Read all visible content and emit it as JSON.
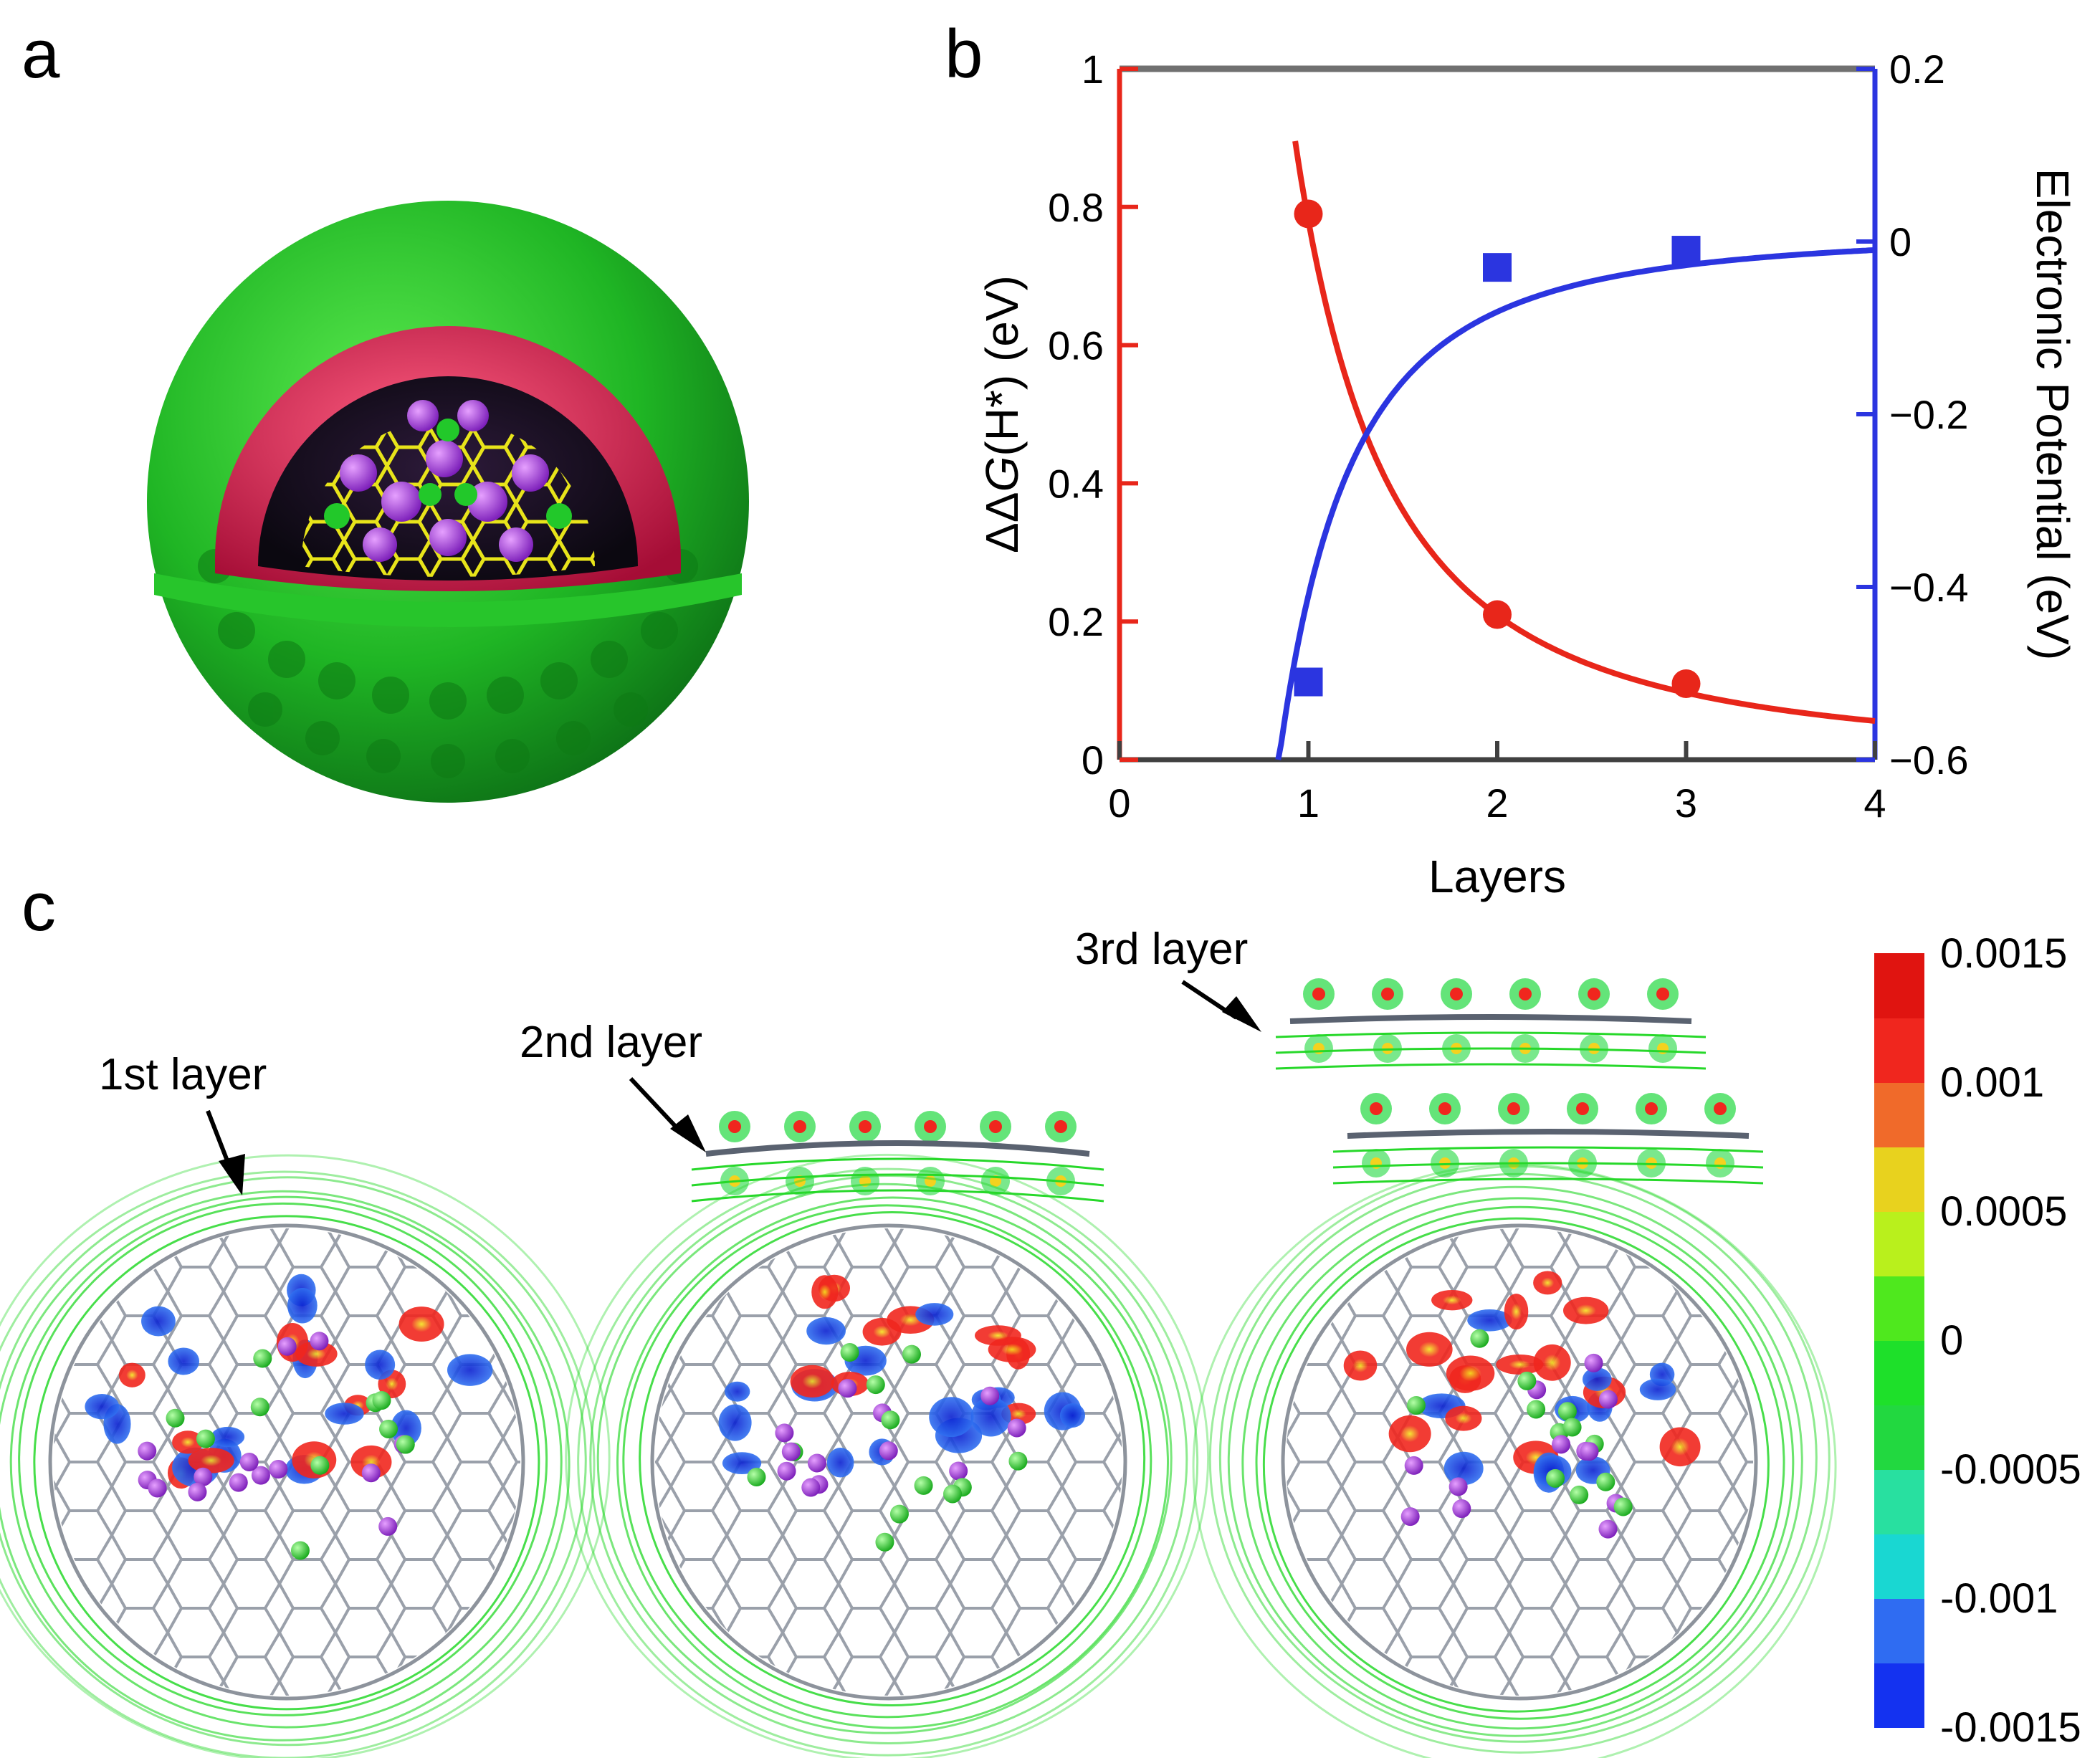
{
  "panels": {
    "a": "a",
    "b": "b",
    "c": "c"
  },
  "chart_data": {
    "type": "scatter",
    "xlabel": "Layers",
    "ylabel_italic_part": "G",
    "ylabel_prefix": "ΔΔ",
    "ylabel_suffix": "(H*) (eV)",
    "y2label": "Electronic Potential (eV)",
    "xlim": [
      0,
      4
    ],
    "ylim": [
      0,
      1
    ],
    "y2lim": [
      -0.6,
      0.2
    ],
    "xticks": [
      "0",
      "1",
      "2",
      "3",
      "4"
    ],
    "yticks": [
      "0",
      "0.2",
      "0.4",
      "0.6",
      "0.8",
      "1"
    ],
    "y2ticks": [
      "−0.6",
      "−0.4",
      "−0.2",
      "0",
      "0.2"
    ],
    "grid": false,
    "series": [
      {
        "axis": "left",
        "marker": "circle",
        "color": "#e8261a",
        "x": [
          1,
          2,
          3
        ],
        "y": [
          0.79,
          0.21,
          0.11
        ]
      },
      {
        "axis": "right",
        "marker": "square",
        "color": "#2b35e0",
        "x": [
          1,
          2,
          3
        ],
        "y": [
          -0.51,
          -0.03,
          -0.01
        ]
      }
    ]
  },
  "colorbar": {
    "ticks": [
      "0.0015",
      "0.001",
      "0.0005",
      "0",
      "-0.0005",
      "-0.001",
      "-0.0015"
    ],
    "colors": [
      "#1432f0",
      "#2f6cf2",
      "#19d7d2",
      "#28e0a0",
      "#22d840",
      "#1ee02a",
      "#4fe81e",
      "#b9f01c",
      "#e8d21e",
      "#f06a2a",
      "#f0261e",
      "#e01410"
    ]
  },
  "callouts": {
    "first": "1st layer",
    "second": "2nd layer",
    "third": "3rd layer"
  },
  "colors": {
    "red_axis": "#e8261a",
    "blue_axis": "#2b35e0",
    "shell_green": "#2ec12e",
    "shell_red": "#d81e4a",
    "cage_yellow": "#e6e01c",
    "atom_purple": "#a13cdc"
  }
}
